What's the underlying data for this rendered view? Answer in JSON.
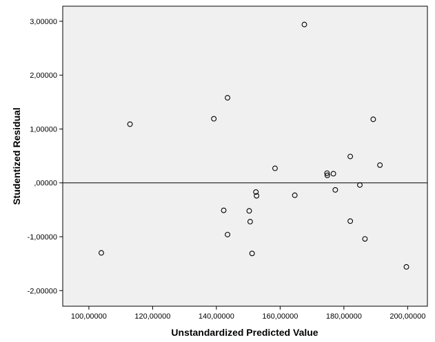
{
  "chart_data": {
    "type": "scatter",
    "xlabel": "Unstandardized Predicted Value",
    "ylabel": "Studentized Residual",
    "xlim": [
      91.8,
      206.2
    ],
    "ylim": [
      -2.29,
      3.28
    ],
    "xticks": [
      100,
      120,
      140,
      160,
      180,
      200
    ],
    "xtick_labels": [
      "100,00000",
      "120,00000",
      "140,00000",
      "160,00000",
      "180,00000",
      "200,00000"
    ],
    "yticks": [
      -2,
      -1,
      0,
      1,
      2,
      3
    ],
    "ytick_labels": [
      "-2,00000",
      "-1,00000",
      ",00000",
      "1,00000",
      "2,00000",
      "3,00000"
    ],
    "reference_line_y": 0,
    "grid": false,
    "legend": "none",
    "marker": "open-circle",
    "colors": {
      "plot_background": "#f0f0f0",
      "marker_stroke": "#000000",
      "reference_line": "#000000"
    },
    "points": [
      {
        "x": 103.9,
        "y": -1.3
      },
      {
        "x": 112.9,
        "y": 1.09
      },
      {
        "x": 139.2,
        "y": 1.19
      },
      {
        "x": 142.3,
        "y": -0.51
      },
      {
        "x": 143.5,
        "y": 1.58
      },
      {
        "x": 143.5,
        "y": -0.96
      },
      {
        "x": 150.3,
        "y": -0.52
      },
      {
        "x": 150.6,
        "y": -0.72
      },
      {
        "x": 151.2,
        "y": -1.31
      },
      {
        "x": 152.4,
        "y": -0.17
      },
      {
        "x": 152.6,
        "y": -0.24
      },
      {
        "x": 158.4,
        "y": 0.27
      },
      {
        "x": 164.6,
        "y": -0.23
      },
      {
        "x": 167.6,
        "y": 2.94
      },
      {
        "x": 174.7,
        "y": 0.18
      },
      {
        "x": 174.8,
        "y": 0.14
      },
      {
        "x": 176.7,
        "y": 0.17
      },
      {
        "x": 177.3,
        "y": -0.13
      },
      {
        "x": 182.0,
        "y": 0.49
      },
      {
        "x": 182.0,
        "y": -0.71
      },
      {
        "x": 185.0,
        "y": -0.04
      },
      {
        "x": 186.6,
        "y": -1.04
      },
      {
        "x": 189.2,
        "y": 1.18
      },
      {
        "x": 191.3,
        "y": 0.33
      },
      {
        "x": 199.6,
        "y": -1.56
      }
    ]
  }
}
